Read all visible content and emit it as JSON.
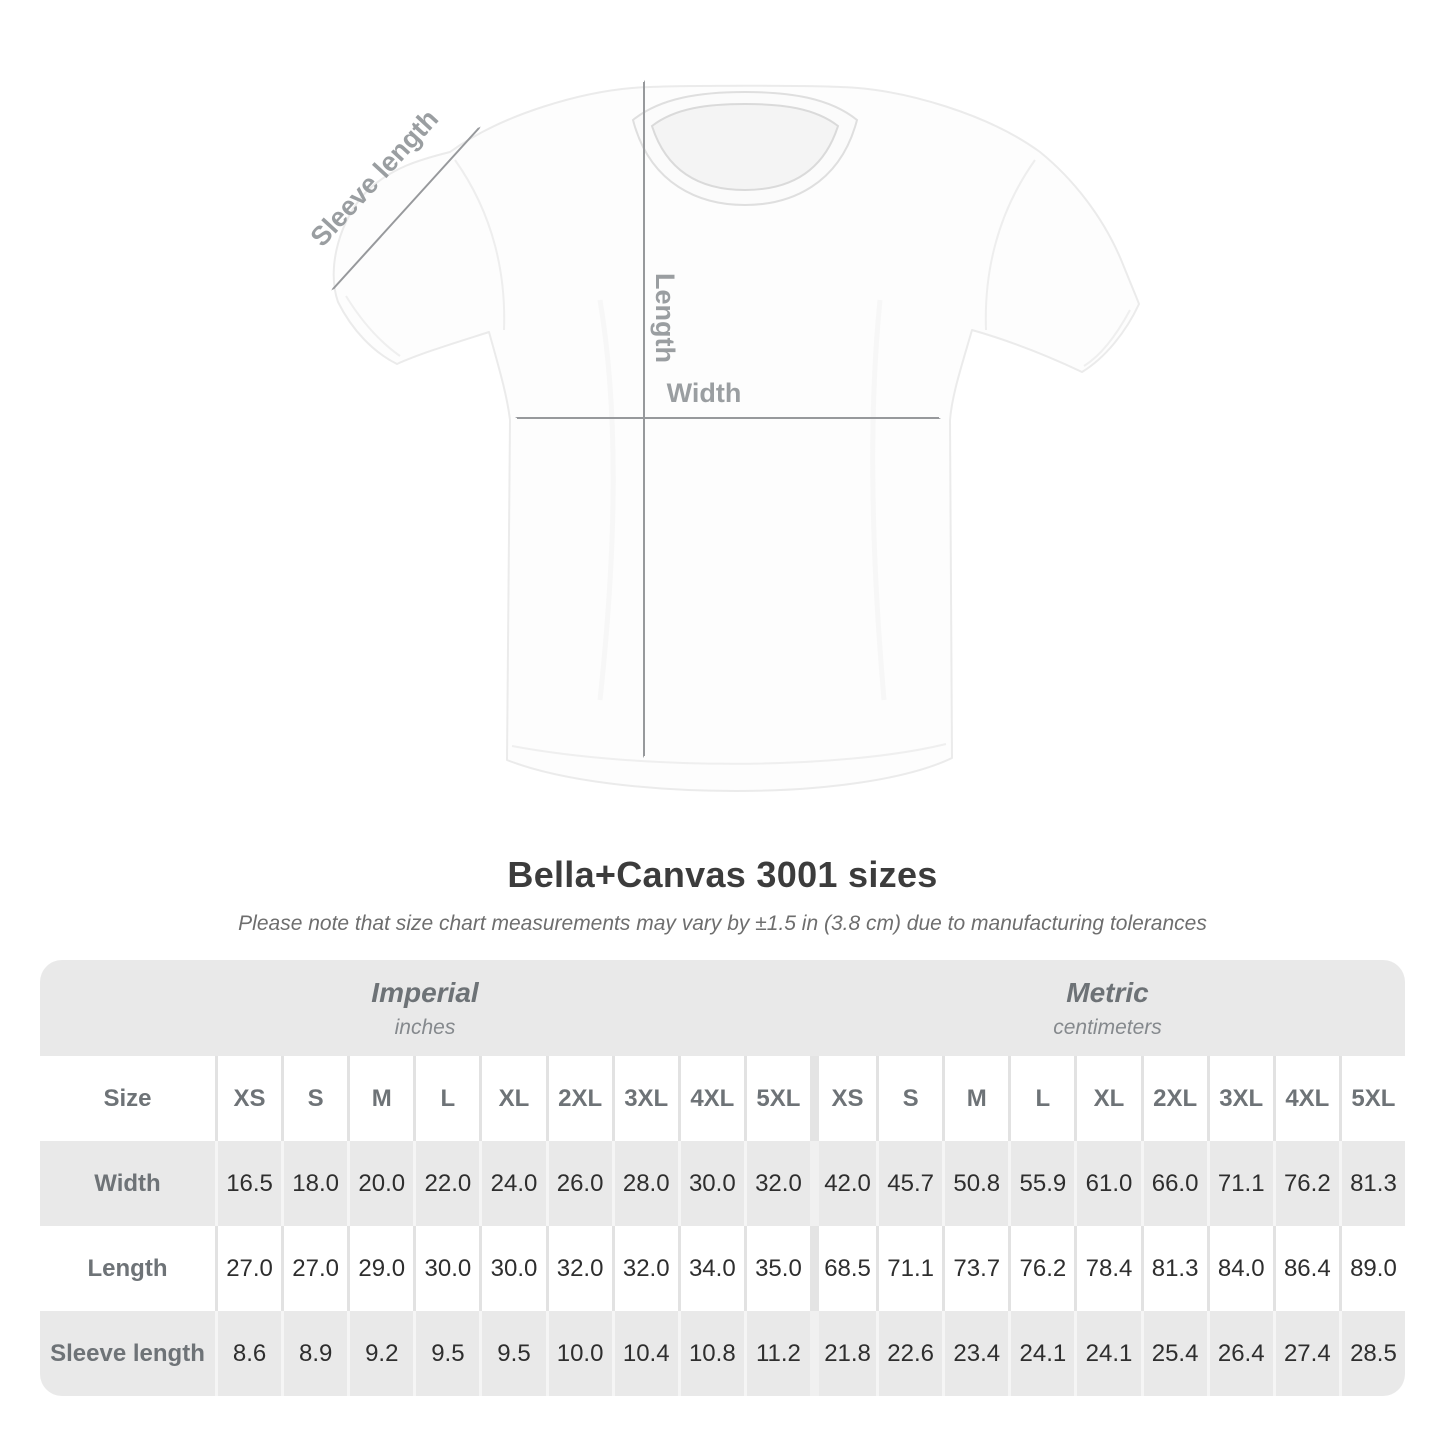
{
  "title": "Bella+Canvas 3001 sizes",
  "subtitle": "Please note that size chart measurements may vary by ±1.5 in (3.8 cm) due to manufacturing tolerances",
  "figure": {
    "sleeve_label": "Sleeve length",
    "length_label": "Length",
    "width_label": "Width"
  },
  "chart_data": {
    "type": "table",
    "title": "Bella+Canvas 3001 sizes",
    "note": "Please note that size chart measurements may vary by ±1.5 in (3.8 cm) due to manufacturing tolerances",
    "sections": [
      {
        "name": "Imperial",
        "unit": "inches"
      },
      {
        "name": "Metric",
        "unit": "centimeters"
      }
    ],
    "row_header": "Size",
    "columns": [
      "XS",
      "S",
      "M",
      "L",
      "XL",
      "2XL",
      "3XL",
      "4XL",
      "5XL"
    ],
    "rows": [
      {
        "label": "Width",
        "imperial": [
          16.5,
          18.0,
          20.0,
          22.0,
          24.0,
          26.0,
          28.0,
          30.0,
          32.0
        ],
        "metric": [
          42.0,
          45.7,
          50.8,
          55.9,
          61.0,
          66.0,
          71.1,
          76.2,
          81.3
        ]
      },
      {
        "label": "Length",
        "imperial": [
          27.0,
          27.0,
          29.0,
          30.0,
          30.0,
          32.0,
          32.0,
          34.0,
          35.0
        ],
        "metric": [
          68.5,
          71.1,
          73.7,
          76.2,
          78.4,
          81.3,
          84.0,
          86.4,
          89.0
        ]
      },
      {
        "label": "Sleeve length",
        "imperial": [
          8.6,
          8.9,
          9.2,
          9.5,
          9.5,
          10.0,
          10.4,
          10.8,
          11.2
        ],
        "metric": [
          21.8,
          22.6,
          23.4,
          24.1,
          24.1,
          25.4,
          26.4,
          27.4,
          28.5
        ]
      }
    ],
    "value_decimals": 1
  },
  "colors": {
    "page_background": "#ffffff",
    "table_stripe": "#e9e9e9",
    "section_header_text": "#6d7276",
    "row_label_text": "#6e7377",
    "value_text": "#2e2e2e",
    "title_text": "#3c3c3c",
    "subtitle_text": "#6e6e6e",
    "figure_annotation": "#9a9ea1"
  }
}
